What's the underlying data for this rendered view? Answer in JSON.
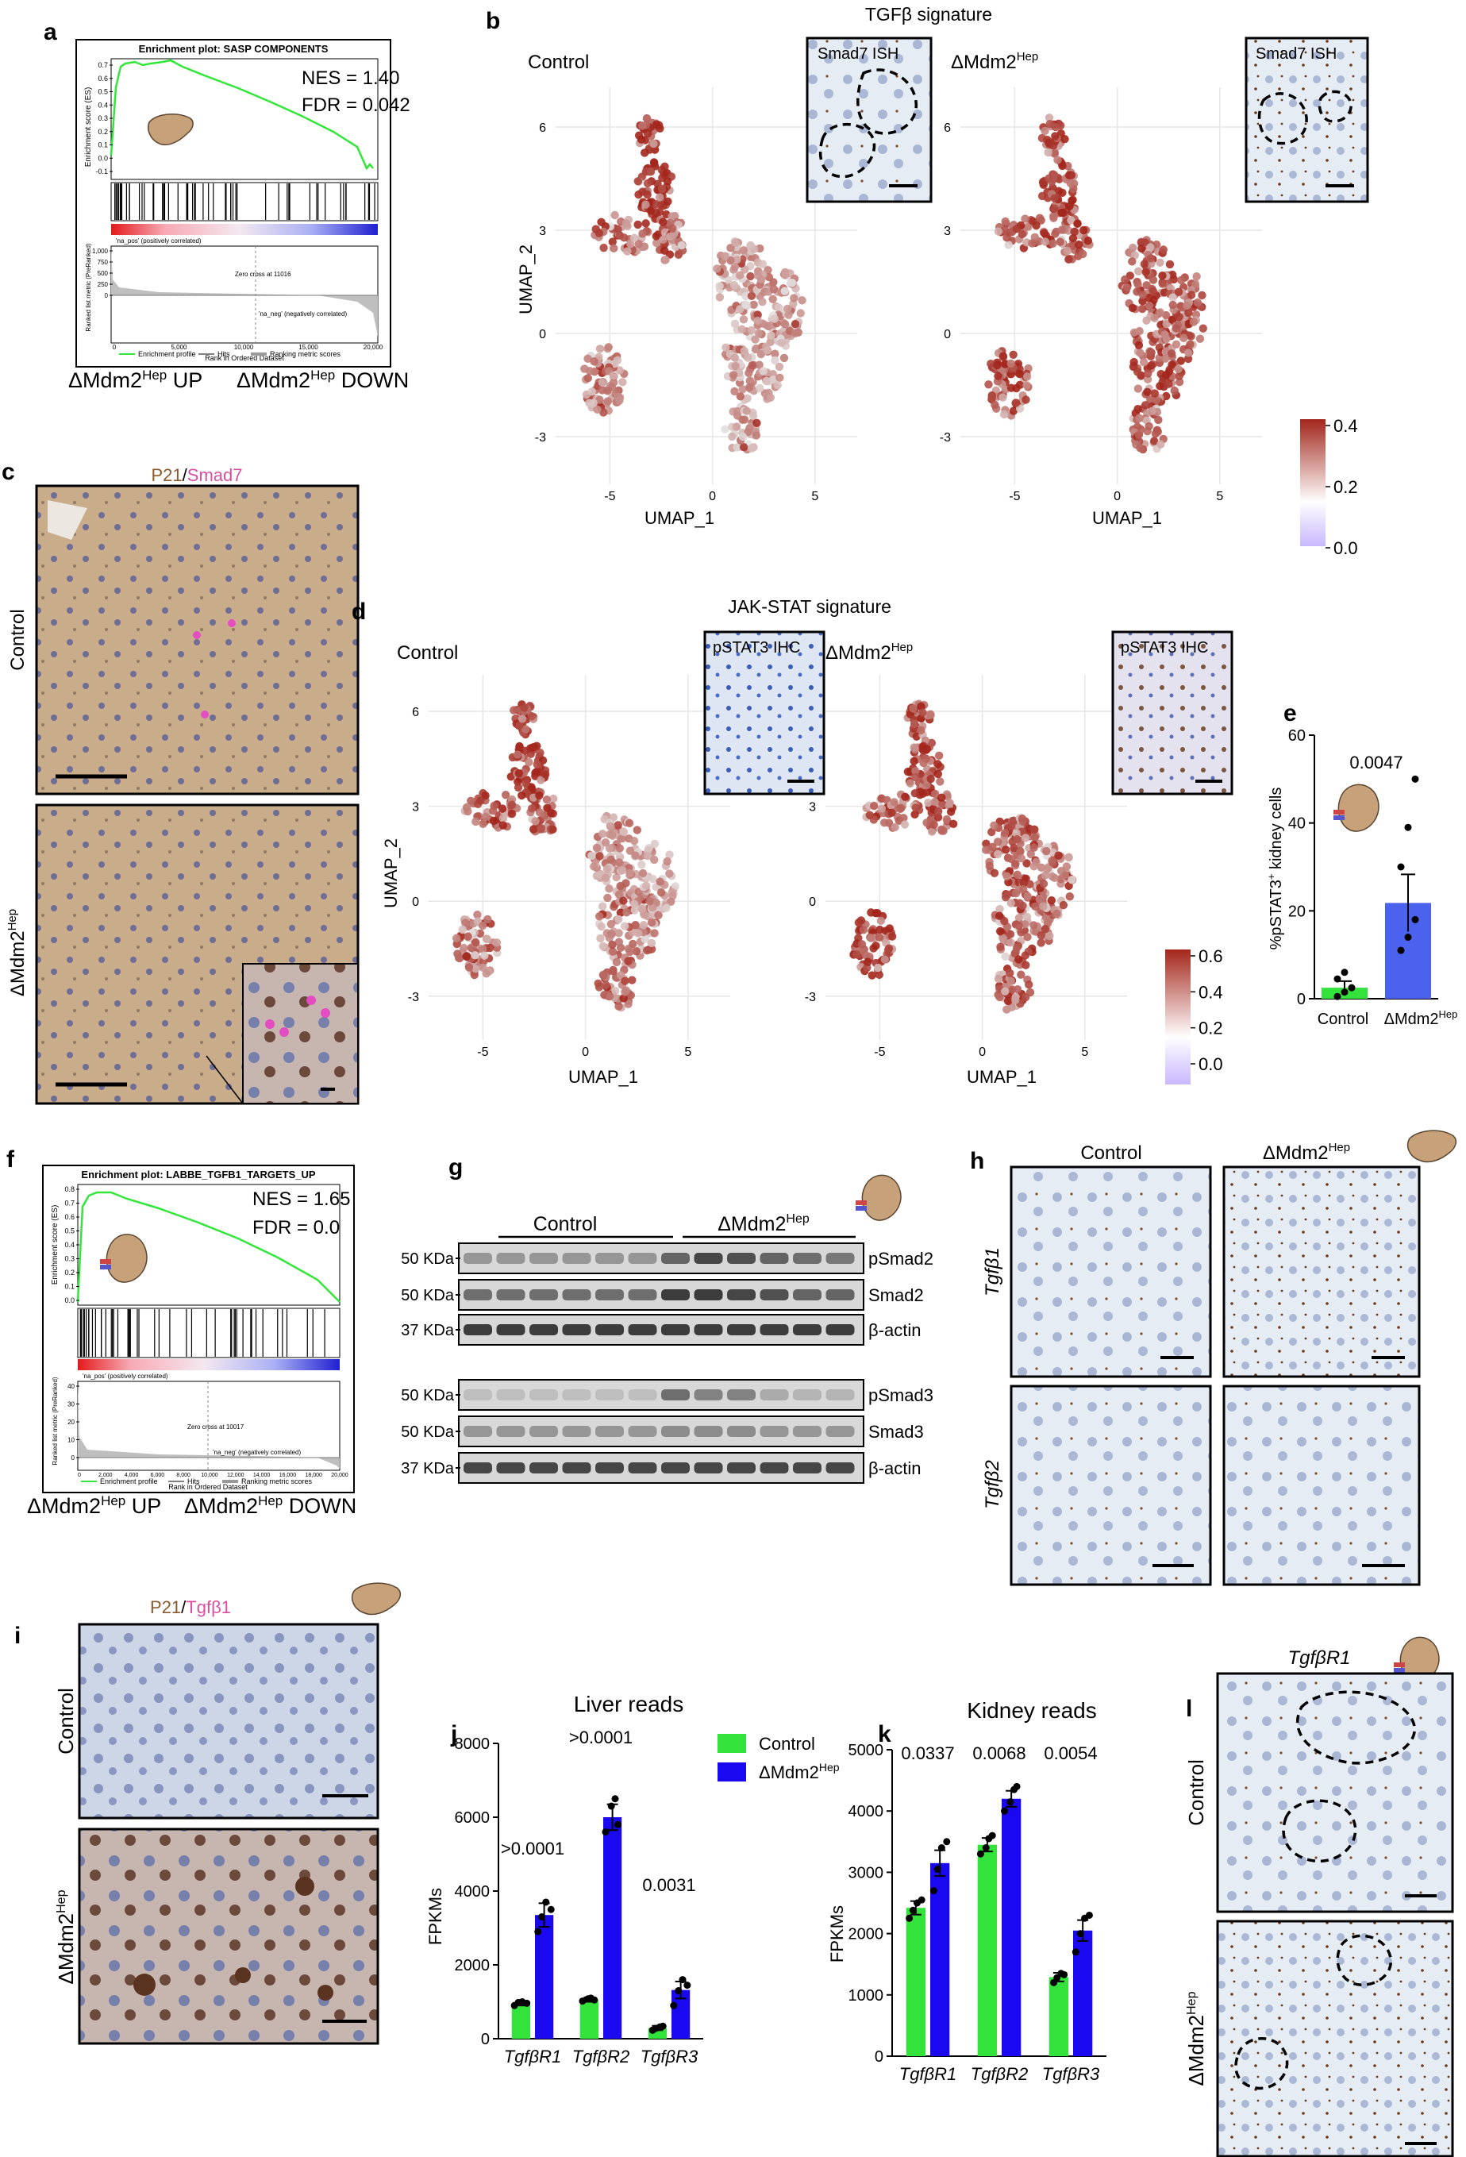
{
  "panels": {
    "a": {
      "letter": "a",
      "title": "Enrichment plot: SASP COMPONENTS",
      "nes": "NES = 1.40",
      "fdr": "FDR = 0.042",
      "es_axis_label": "Enrichment score (ES)",
      "es_ticks": [
        "0.7",
        "0.6",
        "0.5",
        "0.4",
        "0.3",
        "0.2",
        "0.1",
        "0.0",
        "-0.1"
      ],
      "metric_axis_label": "Ranked list metric (PreRanked)",
      "metric_ticks": [
        "1,000",
        "750",
        "500",
        "250",
        "0"
      ],
      "x_ticks": [
        "0",
        "5,000",
        "10,000",
        "15,000",
        "20,000"
      ],
      "xlabel": "Rank in Ordered Dataset",
      "pos_label": "'na_pos' (positively correlated)",
      "neg_label": "'na_neg' (negatively correlated)",
      "zero_cross": "Zero cross at 11016",
      "legend": [
        "Enrichment profile",
        "Hits",
        "Ranking metric scores"
      ],
      "bottom_left": "ΔMdm2",
      "bottom_left_sup": "Hep",
      "bottom_left_tail": " UP",
      "bottom_right": "ΔMdm2",
      "bottom_right_sup": "Hep",
      "bottom_right_tail": " DOWN"
    },
    "b": {
      "letter": "b",
      "title": "TGFβ signature",
      "left_title": "Control",
      "right_title": "ΔMdm2",
      "right_title_sup": "Hep",
      "inset_label": "Smad7 ISH",
      "ylabel": "UMAP_2",
      "xlabel": "UMAP_1",
      "y_ticks": [
        "6",
        "3",
        "0",
        "-3"
      ],
      "x_ticks": [
        "-5",
        "0",
        "5"
      ],
      "colorbar_ticks": [
        "0.4",
        "0.2",
        "0.0"
      ]
    },
    "c": {
      "letter": "c",
      "title_a": "P21",
      "title_sep": "/",
      "title_b": "Smad7",
      "row1": "Control",
      "row2": "ΔMdm2",
      "row2_sup": "Hep"
    },
    "d": {
      "letter": "d",
      "title": "JAK-STAT signature",
      "left_title": "Control",
      "right_title": "ΔMdm2",
      "right_title_sup": "Hep",
      "inset_label": "pSTAT3 IHC",
      "ylabel": "UMAP_2",
      "xlabel": "UMAP_1",
      "y_ticks": [
        "6",
        "3",
        "0",
        "-3"
      ],
      "x_ticks": [
        "-5",
        "0",
        "5"
      ],
      "colorbar_ticks": [
        "0.6",
        "0.4",
        "0.2",
        "0.0"
      ]
    },
    "e": {
      "letter": "e",
      "ylabel": "%pSTAT3",
      "ylabel_sup": "+",
      "ylabel_tail": " kidney cells",
      "y_ticks": [
        "0",
        "20",
        "40",
        "60"
      ],
      "pvalue": "0.0047",
      "cat_control": "Control",
      "cat_mut": "ΔMdm2",
      "cat_mut_sup": "Hep"
    },
    "f": {
      "letter": "f",
      "title": "Enrichment plot: LABBE_TGFB1_TARGETS_UP",
      "nes": "NES = 1.65",
      "fdr": "FDR = 0.0",
      "es_axis_label": "Enrichment score (ES)",
      "es_ticks": [
        "0.8",
        "0.7",
        "0.6",
        "0.5",
        "0.4",
        "0.3",
        "0.2",
        "0.1",
        "0.0"
      ],
      "metric_axis_label": "Ranked list metric (PreRanked)",
      "metric_ticks": [
        "40",
        "30",
        "20",
        "10",
        "0"
      ],
      "x_ticks": [
        "0",
        "2,000",
        "4,000",
        "6,000",
        "8,000",
        "10,000",
        "12,000",
        "14,000",
        "16,000",
        "18,000",
        "20,000"
      ],
      "xlabel": "Rank in Ordered Dataset",
      "pos_label": "'na_pos' (positively correlated)",
      "neg_label": "'na_neg' (negatively correlated)",
      "zero_cross": "Zero cross at 10017",
      "legend": [
        "Enrichment profile",
        "Hits",
        "Ranking metric scores"
      ],
      "bottom_left": "ΔMdm2",
      "bottom_left_sup": "Hep",
      "bottom_left_tail": " UP",
      "bottom_right": "ΔMdm2",
      "bottom_right_sup": "Hep",
      "bottom_right_tail": " DOWN"
    },
    "g": {
      "letter": "g",
      "group_control": "Control",
      "group_mut": "ΔMdm2",
      "group_mut_sup": "Hep",
      "markers": [
        "50 KDa",
        "50 KDa",
        "37 KDa",
        "50 KDa",
        "50 KDa",
        "37 KDa"
      ],
      "bands": [
        "pSmad2",
        "Smad2",
        "β-actin",
        "pSmad3",
        "Smad3",
        "β-actin"
      ]
    },
    "h": {
      "letter": "h",
      "col1": "Control",
      "col2": "ΔMdm2",
      "col2_sup": "Hep",
      "row1": "Tgfβ1",
      "row2": "Tgfβ2"
    },
    "i": {
      "letter": "i",
      "title_a": "P21",
      "title_sep": "/",
      "title_b": "Tgfβ1",
      "row1": "Control",
      "row2": "ΔMdm2",
      "row2_sup": "Hep"
    },
    "j": {
      "letter": "j",
      "title": "Liver reads",
      "ylabel": "FPKMs",
      "y_ticks": [
        "0",
        "2000",
        "4000",
        "6000",
        "8000"
      ],
      "categories": [
        "TgfβR1",
        "TgfβR2",
        "TgfβR3"
      ],
      "pvalues": [
        ">0.0001",
        ">0.0001",
        "0.0031"
      ],
      "legend_control": "Control",
      "legend_mut": "ΔMdm2",
      "legend_mut_sup": "Hep"
    },
    "k": {
      "letter": "k",
      "title": "Kidney reads",
      "ylabel": "FPKMs",
      "y_ticks": [
        "0",
        "1000",
        "2000",
        "3000",
        "4000",
        "5000"
      ],
      "categories": [
        "TgfβR1",
        "TgfβR2",
        "TgfβR3"
      ],
      "pvalues": [
        "0.0337",
        "0.0068",
        "0.0054"
      ]
    },
    "l": {
      "letter": "l",
      "title": "TgfβR1",
      "row1": "Control",
      "row2": "ΔMdm2",
      "row2_sup": "Hep"
    }
  },
  "chart_data": [
    {
      "type": "bar",
      "title": "Liver reads",
      "ylabel": "FPKMs",
      "ylim": [
        0,
        8000
      ],
      "categories": [
        "TgfβR1",
        "TgfβR2",
        "TgfβR3"
      ],
      "series": [
        {
          "name": "Control",
          "color": "#33e23a",
          "values": [
            950,
            1060,
            290
          ],
          "errors": [
            50,
            60,
            60
          ],
          "points": [
            [
              900,
              980,
              1000,
              960
            ],
            [
              1020,
              1080,
              1100,
              1050
            ],
            [
              230,
              280,
              320,
              340
            ]
          ]
        },
        {
          "name": "ΔMdm2Hep",
          "color": "#1a08f0",
          "values": [
            3350,
            6000,
            1320
          ],
          "errors": [
            320,
            350,
            230
          ],
          "points": [
            [
              2900,
              3300,
              3700,
              3500
            ],
            [
              5600,
              6300,
              6500,
              5800
            ],
            [
              900,
              1300,
              1600,
              1450
            ]
          ]
        }
      ],
      "pvalues": [
        ">0.0001",
        ">0.0001",
        "0.0031"
      ]
    },
    {
      "type": "bar",
      "title": "Kidney reads",
      "ylabel": "FPKMs",
      "ylim": [
        0,
        5000
      ],
      "categories": [
        "TgfβR1",
        "TgfβR2",
        "TgfβR3"
      ],
      "series": [
        {
          "name": "Control",
          "color": "#33e23a",
          "values": [
            2420,
            3450,
            1290
          ],
          "errors": [
            110,
            110,
            70
          ],
          "points": [
            [
              2250,
              2380,
              2500,
              2550
            ],
            [
              3300,
              3400,
              3550,
              3600
            ],
            [
              1200,
              1280,
              1350,
              1330
            ]
          ]
        },
        {
          "name": "ΔMdm2Hep",
          "color": "#1a08f0",
          "values": [
            3150,
            4200,
            2050
          ],
          "errors": [
            210,
            130,
            170
          ],
          "points": [
            [
              2700,
              3050,
              3400,
              3500
            ],
            [
              4000,
              4150,
              4350,
              4400
            ],
            [
              1700,
              2000,
              2250,
              2300
            ]
          ]
        }
      ],
      "pvalues": [
        "0.0337",
        "0.0068",
        "0.0054"
      ]
    },
    {
      "type": "bar",
      "ylabel": "%pSTAT3+ kidney cells",
      "ylim": [
        0,
        60
      ],
      "categories": [
        "Control",
        "ΔMdm2Hep"
      ],
      "values": [
        2.5,
        21.8
      ],
      "errors": [
        1.5,
        6.5
      ],
      "colors": [
        "#33e23a",
        "#4b62ee"
      ],
      "points": [
        [
          0.5,
          1.5,
          2.5,
          4.5,
          6
        ],
        [
          11,
          14,
          18,
          30,
          39,
          50
        ]
      ],
      "pvalue": "0.0047"
    }
  ],
  "colors": {
    "gsea_line": "#32e63a",
    "umap_high": "#a3261c",
    "umap_low": "#e4e4e4",
    "bar_control": "#33e23a",
    "bar_mut": "#1a08f0",
    "bar_mut_e": "#4b62ee",
    "tissue_brown": "#c9ad8a",
    "tissue_blue": "#c3d0e6",
    "ish_bg": "#e4ebf2"
  }
}
